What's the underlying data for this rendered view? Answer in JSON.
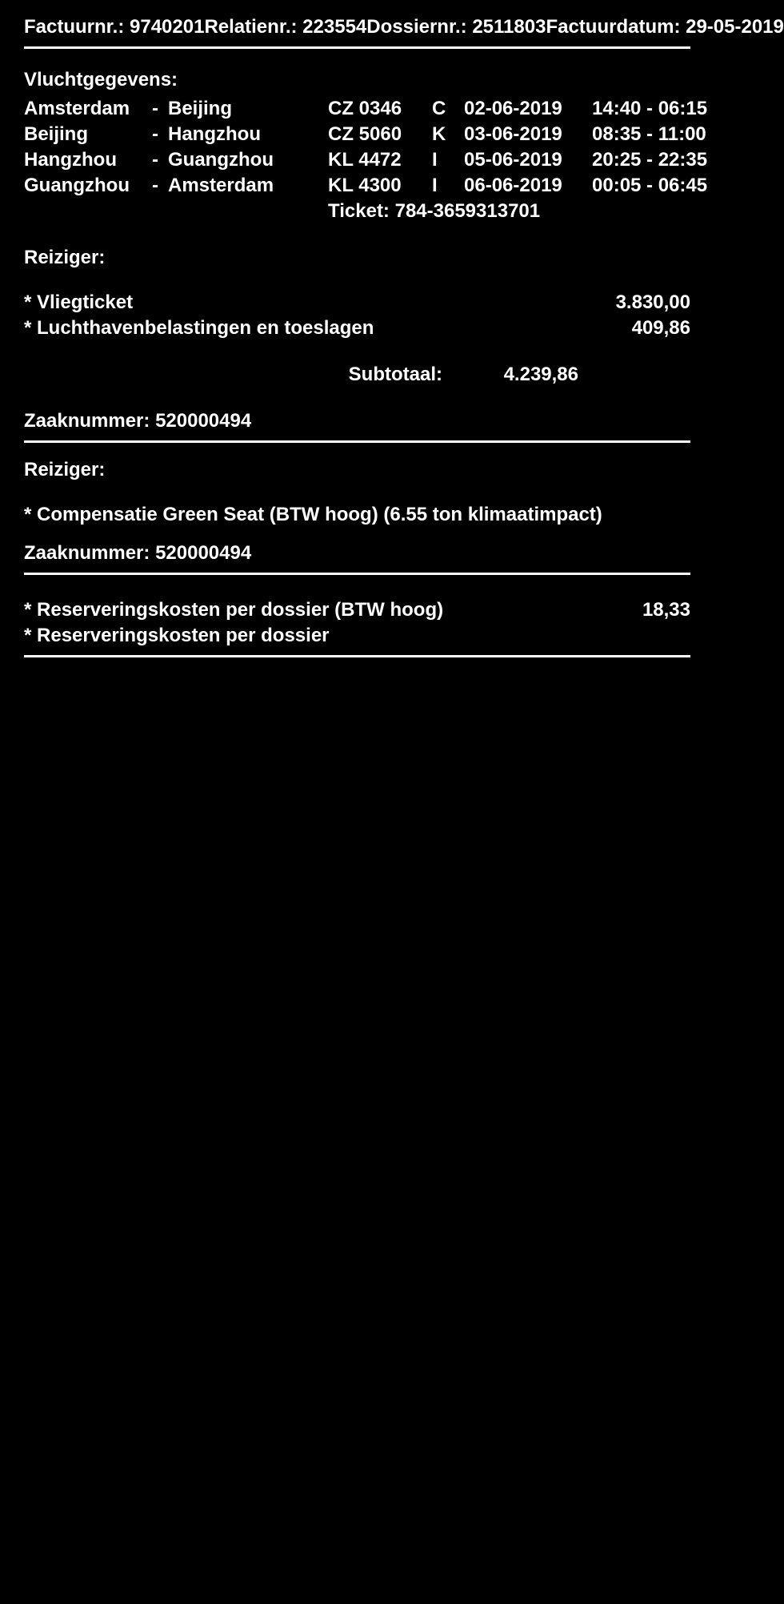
{
  "colors": {
    "background": "#000000",
    "text": "#ffffff",
    "border": "#ffffff"
  },
  "header": {
    "factuurnr_label": "Factuurnr.:",
    "factuurnr": "9740201",
    "relatienr_label": "Relatienr.:",
    "relatienr": "223554",
    "dossiernr_label": "Dossiernr.:",
    "dossiernr": "2511803",
    "factuurdatum_label": "Factuurdatum:",
    "factuurdatum": "29-05-2019"
  },
  "vluchtgegevens_label": "Vluchtgegevens:",
  "flights": [
    {
      "from": "Amsterdam",
      "to": "Beijing",
      "code": "CZ 0346",
      "class": "C",
      "date": "02-06-2019",
      "time": "14:40 - 06:15"
    },
    {
      "from": "Beijing",
      "to": "Hangzhou",
      "code": "CZ 5060",
      "class": "K",
      "date": "03-06-2019",
      "time": "08:35 - 11:00"
    },
    {
      "from": "Hangzhou",
      "to": "Guangzhou",
      "code": "KL 4472",
      "class": "I",
      "date": "05-06-2019",
      "time": "20:25 - 22:35"
    },
    {
      "from": "Guangzhou",
      "to": "Amsterdam",
      "code": "KL 4300",
      "class": "I",
      "date": "06-06-2019",
      "time": "00:05 - 06:45"
    }
  ],
  "ticket_label": "Ticket:",
  "ticket": "784-3659313701",
  "reiziger_label": "Reiziger:",
  "line_items_1": [
    {
      "label": "* Vliegticket",
      "amount": "3.830,00"
    },
    {
      "label": "* Luchthavenbelastingen en toeslagen",
      "amount": "409,86"
    }
  ],
  "subtotal_label": "Subtotaal:",
  "subtotal": "4.239,86",
  "zaaknummer1_label": "Zaaknummer:",
  "zaaknummer1": "520000494",
  "compensatie": "* Compensatie Green Seat (BTW hoog) (6.55 ton klimaatimpact)",
  "zaaknummer2_label": "Zaaknummer:",
  "zaaknummer2": "520000494",
  "reservering1": {
    "label": "* Reserveringskosten per dossier (BTW hoog)",
    "amount": "18,33"
  },
  "reservering2": {
    "label": "* Reserveringskosten per dossier",
    "amount": ""
  }
}
